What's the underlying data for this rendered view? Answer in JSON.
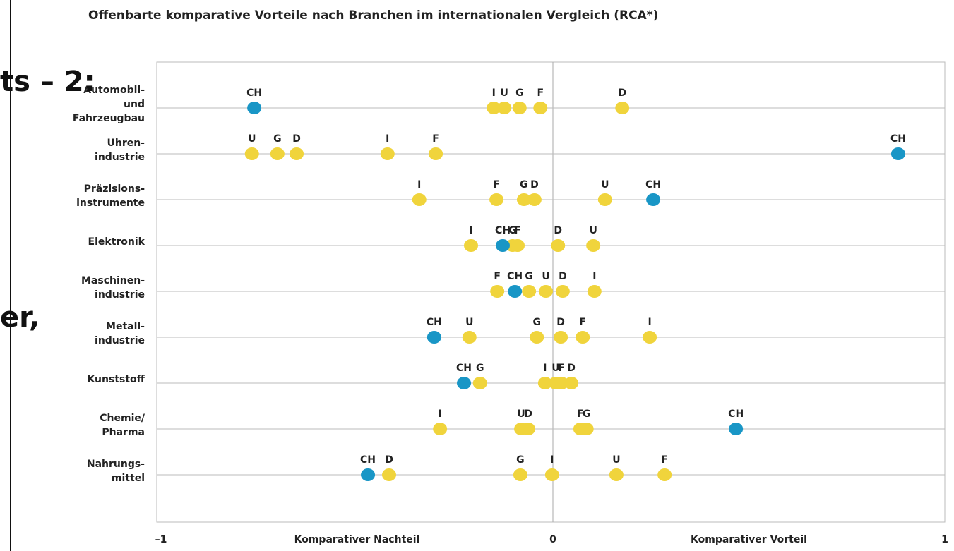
{
  "chart_data": {
    "type": "dot",
    "title": "Offenbarte komparative Vorteile nach Branchen im internationalen Vergleich (RCA*)",
    "overlay_texts": [
      "ts – 2:",
      "er,"
    ],
    "categories": [
      [
        "Automobil-",
        "und",
        "Fahrzeugbau"
      ],
      [
        "Uhren-",
        "industrie"
      ],
      [
        "Präzisions-",
        "instrumente"
      ],
      [
        "Elektronik"
      ],
      [
        "Maschinen-",
        "industrie"
      ],
      [
        "Metall-",
        "industrie"
      ],
      [
        "Kunststoff"
      ],
      [
        "Chemie/",
        "Pharma"
      ],
      [
        "Nahrungs-",
        "mittel"
      ]
    ],
    "series": [
      {
        "name": "CH",
        "color": "#1996c6",
        "values": [
          -0.762,
          0.881,
          0.256,
          -0.128,
          -0.097,
          -0.303,
          -0.227,
          0.467,
          -0.472
        ]
      },
      {
        "name": "D",
        "color": "#f0d43c",
        "values": [
          0.177,
          -0.654,
          -0.047,
          0.013,
          0.025,
          0.02,
          0.047,
          -0.063,
          -0.418
        ]
      },
      {
        "name": "F",
        "color": "#f0d43c",
        "values": [
          -0.032,
          -0.299,
          -0.144,
          -0.09,
          -0.142,
          0.076,
          0.022,
          0.07,
          0.285
        ]
      },
      {
        "name": "G",
        "color": "#f0d43c",
        "values": [
          -0.085,
          -0.703,
          -0.074,
          -0.103,
          -0.061,
          -0.041,
          -0.186,
          0.086,
          -0.083
        ]
      },
      {
        "name": "I",
        "color": "#f0d43c",
        "values": [
          -0.151,
          -0.422,
          -0.341,
          -0.209,
          0.106,
          0.247,
          -0.02,
          -0.288,
          -0.002
        ]
      },
      {
        "name": "U",
        "color": "#f0d43c",
        "values": [
          -0.124,
          -0.768,
          0.133,
          0.103,
          -0.018,
          -0.213,
          0.007,
          -0.081,
          0.162
        ]
      }
    ],
    "xlim": [
      -1,
      1
    ],
    "xticks": [
      {
        "value": -1,
        "label": "–1"
      },
      0,
      1
    ],
    "axis_labels": [
      "Komparativer Nachteil",
      "Komparativer Vorteil"
    ]
  }
}
